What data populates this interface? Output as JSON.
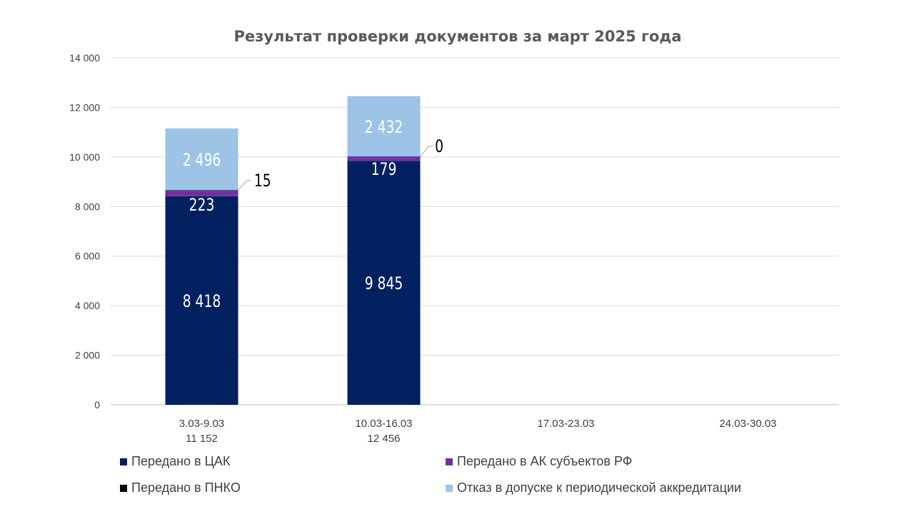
{
  "chart_data": {
    "type": "bar",
    "stacked": true,
    "title": "Результат проверки документов за март 2025 года",
    "categories": [
      [
        "3.03-9.03",
        "11 152"
      ],
      [
        "10.03-16.03",
        "12 456"
      ],
      [
        "17.03-23.03"
      ],
      [
        "24.03-30.03"
      ]
    ],
    "series": [
      {
        "name": "Передано в ЦАК",
        "color": "#002060",
        "values": [
          8418,
          9845,
          null,
          null
        ],
        "labels": [
          "8 418",
          "9 845",
          null,
          null
        ]
      },
      {
        "name": "Передано в АК субъектов РФ",
        "color": "#7030A0",
        "values": [
          223,
          179,
          null,
          null
        ],
        "labels": [
          "223",
          "179",
          null,
          null
        ]
      },
      {
        "name": "Передано в ПНКО",
        "color": "#000000",
        "values": [
          15,
          0,
          null,
          null
        ],
        "labels": [
          "15",
          "0",
          null,
          null
        ]
      },
      {
        "name": "Отказ в допуске к периодической аккредитации",
        "color": "#9DC3E6",
        "values": [
          2496,
          2432,
          null,
          null
        ],
        "labels": [
          "2 496",
          "2 432",
          null,
          null
        ]
      }
    ],
    "ylim": [
      0,
      14000
    ],
    "yticks": [
      0,
      2000,
      4000,
      6000,
      8000,
      10000,
      12000,
      14000
    ],
    "ytick_labels": [
      "0",
      "2 000",
      "4 000",
      "6 000",
      "8 000",
      "10 000",
      "12 000",
      "14 000"
    ],
    "grid": true,
    "legend_position": "bottom"
  }
}
